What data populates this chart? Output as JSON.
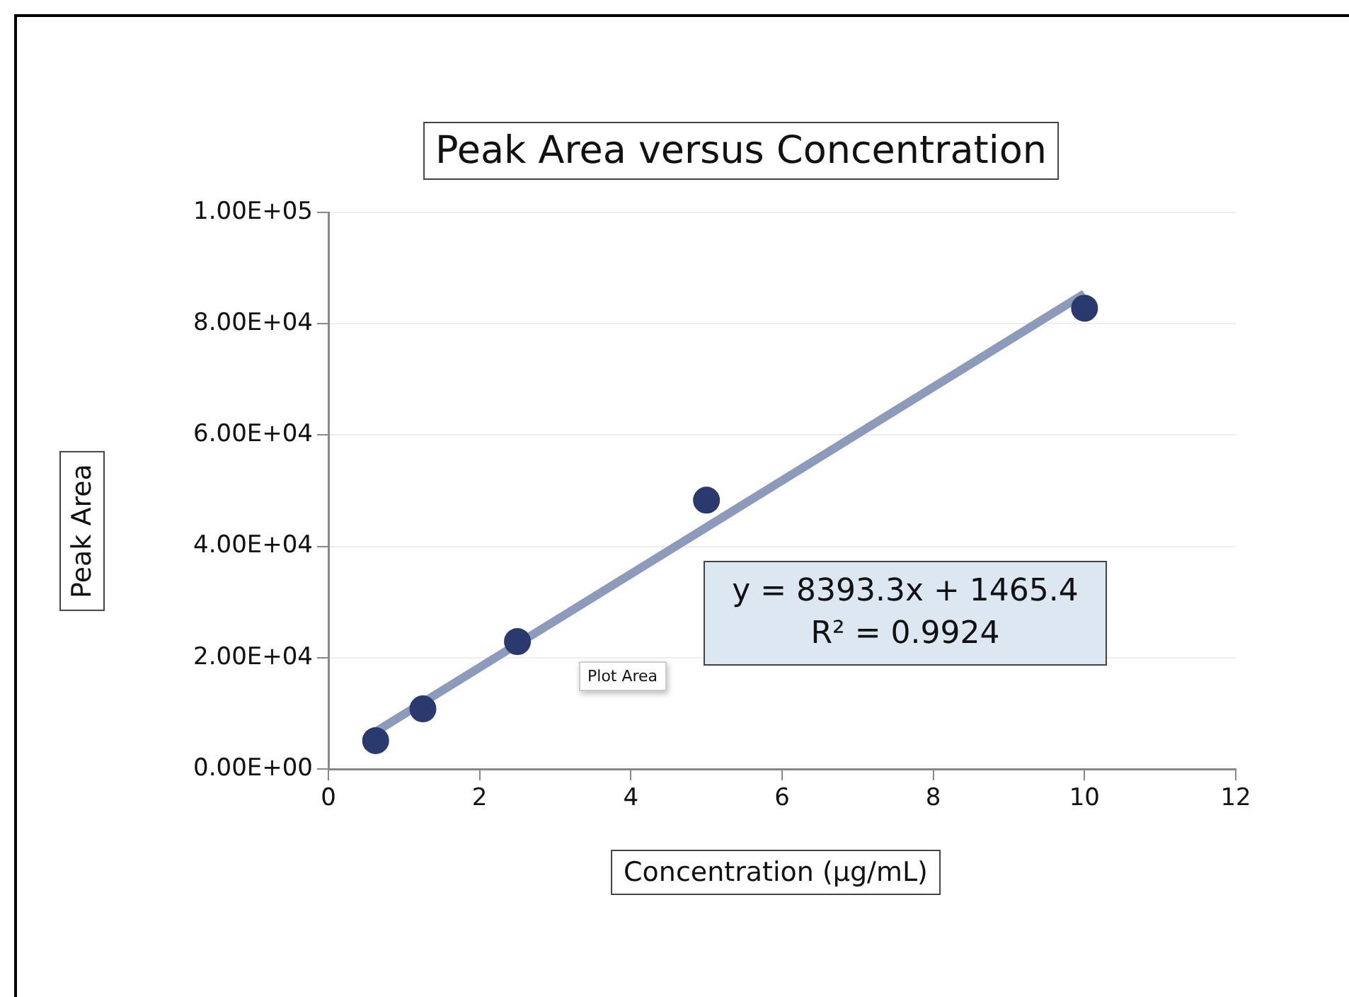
{
  "chart_data": {
    "type": "scatter",
    "title": "Peak Area versus Concentration",
    "xlabel": "Concentration (µg/mL)",
    "ylabel": "Peak Area",
    "series": [
      {
        "type": "scatter",
        "color": "#2b3a6e",
        "marker": "circle",
        "x": [
          0.625,
          1.25,
          2.5,
          5,
          10
        ],
        "values": [
          5100,
          10800,
          22900,
          48300,
          82800
        ]
      },
      {
        "type": "line",
        "color": "#8c9bbb",
        "marker": "none",
        "x": [
          0.625,
          10
        ],
        "values": [
          6700,
          85400
        ]
      }
    ],
    "xlim": [
      0,
      12
    ],
    "xticks": [
      0,
      2,
      4,
      6,
      8,
      10,
      12
    ],
    "ylim": [
      0,
      100000
    ],
    "yticks": [
      {
        "value": 0,
        "label": "0.00E+00"
      },
      {
        "value": 20000,
        "label": "2.00E+04"
      },
      {
        "value": 40000,
        "label": "4.00E+04"
      },
      {
        "value": 60000,
        "label": "6.00E+04"
      },
      {
        "value": 80000,
        "label": "8.00E+04"
      },
      {
        "value": 100000,
        "label": "1.00E+05"
      }
    ],
    "grid": "y",
    "legend": false,
    "annotations": [
      "y = 8393.3x + 1465.4\nR² = 0.9924",
      "Plot Area"
    ]
  }
}
